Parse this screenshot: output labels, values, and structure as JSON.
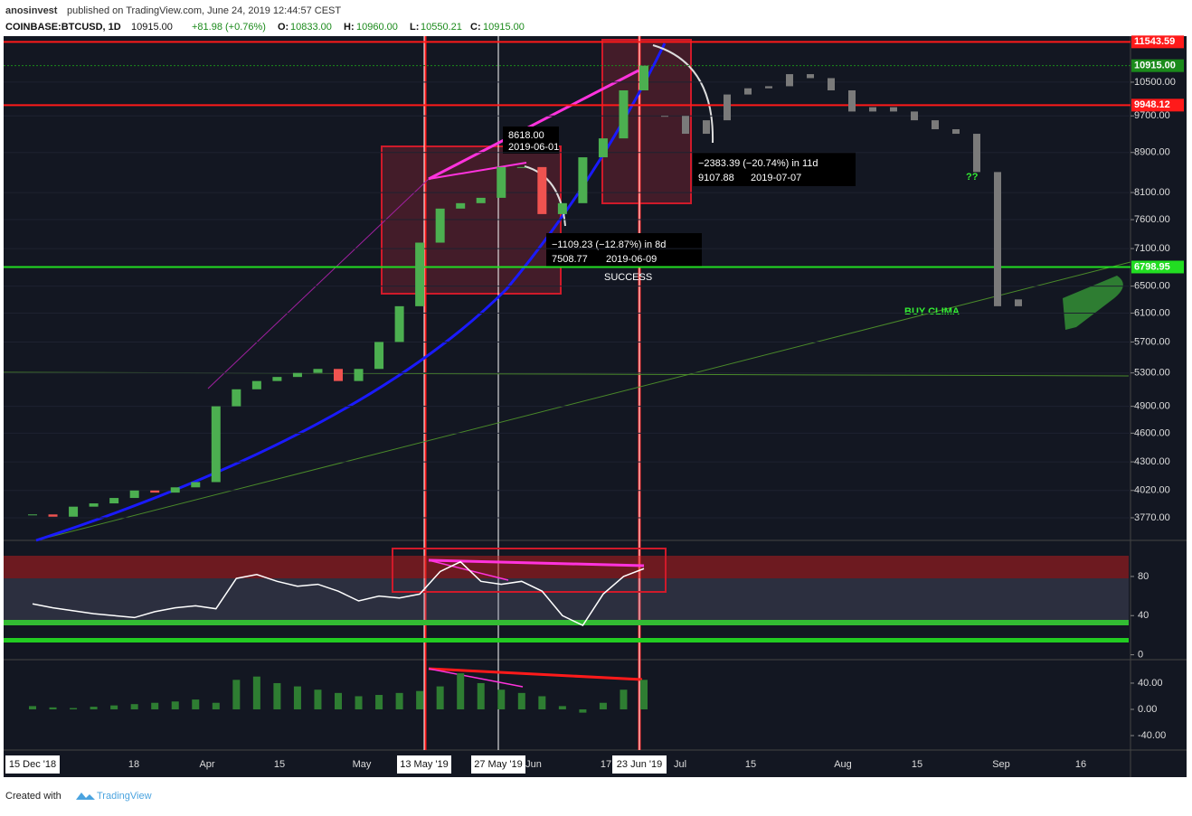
{
  "chart_data": {
    "type": "candlestick",
    "header": {
      "author": "anosinvest",
      "published": "published on TradingView.com, June 24, 2019 12:44:57 CEST",
      "symbol": "COINBASE:BTCUSD, 1D",
      "last": "10915.00",
      "change": "+81.98 (+0.76%)",
      "o_label": "O:",
      "o": "10833.00",
      "h_label": "H:",
      "h": "10960.00",
      "l_label": "L:",
      "l": "10550.21",
      "c_label": "C:",
      "c": "10915.00"
    },
    "up_color": "#4caf50",
    "down_color": "#ef5350",
    "values": [
      3800,
      3780,
      3870,
      3900,
      3950,
      4020,
      4000,
      4050,
      4100,
      4900,
      5100,
      5200,
      5250,
      5300,
      5350,
      5200,
      5350,
      5700,
      6200,
      7200,
      7800,
      7900,
      8000,
      8600,
      8600,
      7700,
      7900,
      8800,
      9200,
      10300,
      10915
    ],
    "projection": {
      "color": "#7a7a7a",
      "values": [
        9700,
        9300,
        9600,
        10200,
        10350,
        10400,
        10700,
        10600,
        10300,
        9800,
        9900,
        9800,
        9600,
        9400,
        9300,
        8500,
        6200,
        6300
      ]
    },
    "log_scale": true,
    "ylim": [
      3575,
      11700
    ],
    "yticks": [
      {
        "value": 10500,
        "label": "10500.00"
      },
      {
        "value": 9700,
        "label": "9700.00"
      },
      {
        "value": 8900,
        "label": "8900.00"
      },
      {
        "value": 8100,
        "label": "8100.00"
      },
      {
        "value": 7600,
        "label": "7600.00"
      },
      {
        "value": 7100,
        "label": "7100.00"
      },
      {
        "value": 6500,
        "label": "6500.00"
      },
      {
        "value": 6100,
        "label": "6100.00"
      },
      {
        "value": 5700,
        "label": "5700.00"
      },
      {
        "value": 5300,
        "label": "5300.00"
      },
      {
        "value": 4900,
        "label": "4900.00"
      },
      {
        "value": 4600,
        "label": "4600.00"
      },
      {
        "value": 4300,
        "label": "4300.00"
      },
      {
        "value": 4020,
        "label": "4020.00"
      },
      {
        "value": 3770,
        "label": "3770.00"
      }
    ],
    "price_lines": [
      11543.59,
      {
        "value": 10915,
        "label": "10915.00"
      },
      9948.12,
      6798.95
    ],
    "price_line_colors": [
      "#ff1a1a",
      "#1b8a1b",
      "#ff1a1a",
      "#22dd22"
    ],
    "x_labels": [
      "15 Dec '18",
      "18",
      "Apr",
      "15",
      "May",
      "13 May '19",
      "27 May '19",
      "Jun",
      "17",
      "23 Jun '19",
      "Jul",
      "15",
      "Aug",
      "15",
      "Sep",
      "16"
    ],
    "annotations": {
      "high": "8618.00",
      "high_date": "2019-06-01",
      "drop1": "−1109.23 (−12.87%) in 8d",
      "drop1_price": "7508.77",
      "drop1_date": "2019-06-09",
      "success": "SUCCESS",
      "drop2": "−2383.39 (−20.74%) in 11d",
      "drop2_price": "9107.88",
      "drop2_date": "2019-07-07",
      "question": "??",
      "buy": "BUY CLIMA"
    },
    "rsi": {
      "color": "#ffffff",
      "values": [
        52,
        48,
        45,
        42,
        40,
        38,
        44,
        48,
        50,
        47,
        78,
        82,
        75,
        70,
        72,
        65,
        55,
        60,
        58,
        62,
        85,
        95,
        75,
        72,
        75,
        65,
        40,
        30,
        62,
        80,
        88
      ],
      "ylim": [
        -5,
        115
      ],
      "yticks": [
        0,
        40,
        80
      ]
    },
    "osc": {
      "color": "#2e7d32",
      "values": [
        5,
        3,
        2,
        4,
        6,
        8,
        10,
        12,
        15,
        10,
        45,
        50,
        40,
        35,
        30,
        25,
        20,
        22,
        25,
        28,
        35,
        55,
        40,
        30,
        25,
        20,
        5,
        -5,
        10,
        30,
        45
      ],
      "ylim": [
        -62,
        73
      ],
      "yticks": [
        {
          "value": 40,
          "label": "40.00"
        },
        {
          "value": 0,
          "label": "0.00"
        },
        {
          "value": -40,
          "label": "-40.00"
        }
      ]
    },
    "footer": {
      "created": "Created with",
      "brand": "TradingView"
    }
  }
}
